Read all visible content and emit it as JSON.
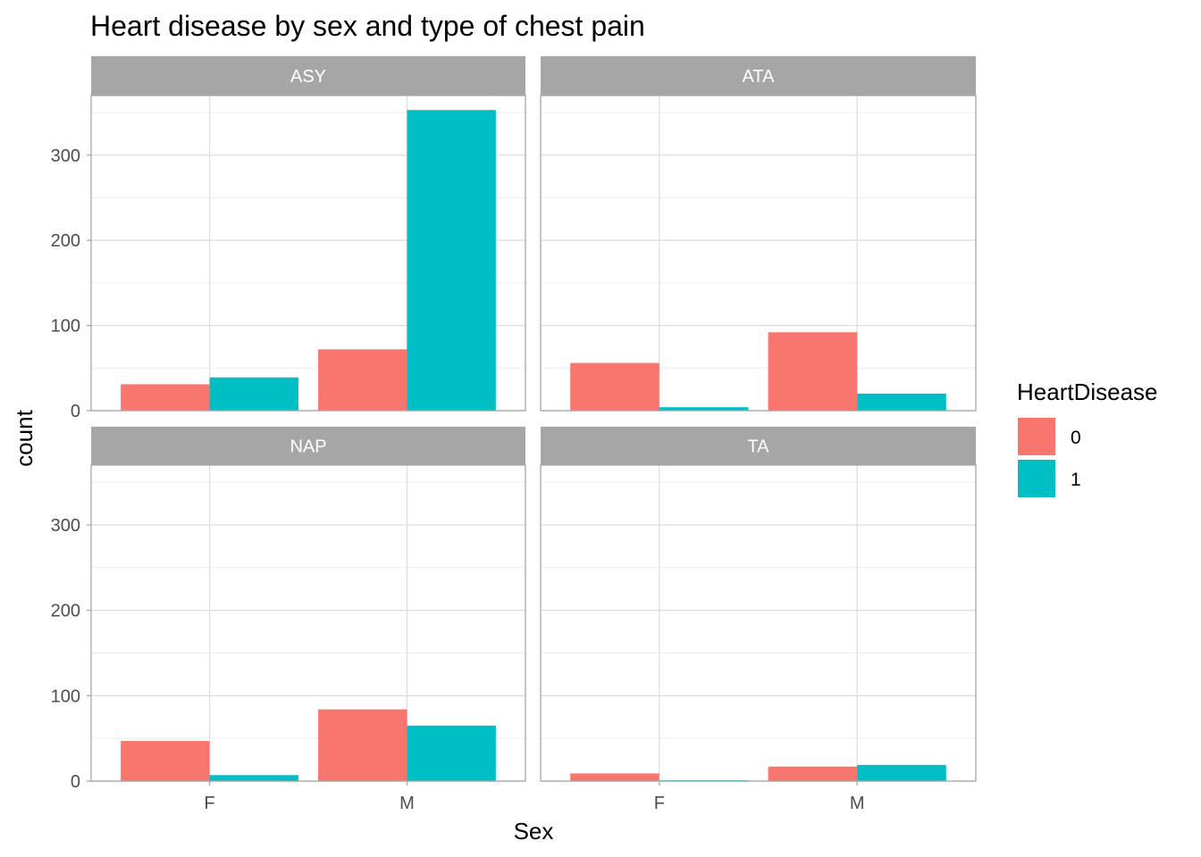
{
  "chart_data": {
    "type": "bar",
    "title": "Heart disease by sex and type of chest pain",
    "xlabel": "Sex",
    "ylabel": "count",
    "categories": [
      "F",
      "M"
    ],
    "ylim": [
      0,
      370
    ],
    "yticks": [
      0,
      100,
      200,
      300
    ],
    "grid": true,
    "legend": {
      "title": "HeartDisease",
      "placement": "right",
      "entries": [
        {
          "label": "0",
          "color": "#F8766D"
        },
        {
          "label": "1",
          "color": "#00BFC4"
        }
      ]
    },
    "facets": [
      {
        "label": "ASY",
        "series": [
          {
            "name": "0",
            "values": [
              31,
              72
            ]
          },
          {
            "name": "1",
            "values": [
              39,
              353
            ]
          }
        ]
      },
      {
        "label": "ATA",
        "series": [
          {
            "name": "0",
            "values": [
              56,
              92
            ]
          },
          {
            "name": "1",
            "values": [
              4,
              20
            ]
          }
        ]
      },
      {
        "label": "NAP",
        "series": [
          {
            "name": "0",
            "values": [
              47,
              84
            ]
          },
          {
            "name": "1",
            "values": [
              7,
              65
            ]
          }
        ]
      },
      {
        "label": "TA",
        "series": [
          {
            "name": "0",
            "values": [
              9,
              17
            ]
          },
          {
            "name": "1",
            "values": [
              1,
              19
            ]
          }
        ]
      }
    ]
  }
}
